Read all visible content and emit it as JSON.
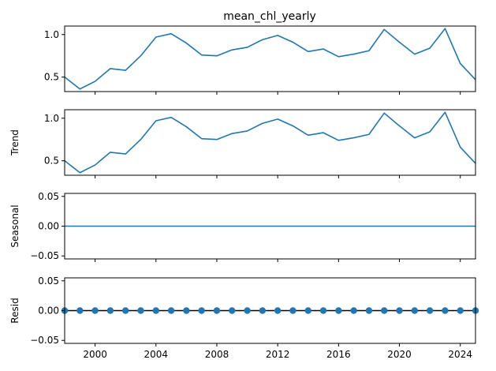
{
  "chart_data": {
    "type": "line",
    "title": "mean_chl_yearly",
    "x": [
      1998,
      1999,
      2000,
      2001,
      2002,
      2003,
      2004,
      2005,
      2006,
      2007,
      2008,
      2009,
      2010,
      2011,
      2012,
      2013,
      2014,
      2015,
      2016,
      2017,
      2018,
      2019,
      2020,
      2021,
      2022,
      2023,
      2024,
      2025
    ],
    "xlim": [
      1998,
      2025
    ],
    "xticks": [
      2000,
      2004,
      2008,
      2012,
      2016,
      2020,
      2024
    ],
    "xtick_labels": [
      "2000",
      "2004",
      "2008",
      "2012",
      "2016",
      "2020",
      "2024"
    ],
    "color": "#1f77b4",
    "residual_line_color": "#000000",
    "panels": [
      {
        "name": "observed",
        "ylabel": "",
        "style": "line",
        "ylim": [
          0.33,
          1.1
        ],
        "yticks": [
          0.5,
          1.0
        ],
        "ytick_labels": [
          "0.5",
          "1.0"
        ],
        "values": [
          0.5,
          0.36,
          0.45,
          0.6,
          0.58,
          0.75,
          0.97,
          1.01,
          0.9,
          0.76,
          0.75,
          0.82,
          0.85,
          0.94,
          0.99,
          0.91,
          0.8,
          0.83,
          0.74,
          0.77,
          0.81,
          1.06,
          0.91,
          0.77,
          0.84,
          1.07,
          0.66,
          0.47
        ]
      },
      {
        "name": "trend",
        "ylabel": "Trend",
        "style": "line",
        "ylim": [
          0.33,
          1.1
        ],
        "yticks": [
          0.5,
          1.0
        ],
        "ytick_labels": [
          "0.5",
          "1.0"
        ],
        "values": [
          0.5,
          0.36,
          0.45,
          0.6,
          0.58,
          0.75,
          0.97,
          1.01,
          0.9,
          0.76,
          0.75,
          0.82,
          0.85,
          0.94,
          0.99,
          0.91,
          0.8,
          0.83,
          0.74,
          0.77,
          0.81,
          1.06,
          0.91,
          0.77,
          0.84,
          1.07,
          0.66,
          0.47
        ]
      },
      {
        "name": "seasonal",
        "ylabel": "Seasonal",
        "style": "line",
        "ylim": [
          -0.055,
          0.055
        ],
        "yticks": [
          -0.05,
          0.0,
          0.05
        ],
        "ytick_labels": [
          "−0.05",
          "0.00",
          "0.05"
        ],
        "values": [
          0,
          0,
          0,
          0,
          0,
          0,
          0,
          0,
          0,
          0,
          0,
          0,
          0,
          0,
          0,
          0,
          0,
          0,
          0,
          0,
          0,
          0,
          0,
          0,
          0,
          0,
          0,
          0
        ]
      },
      {
        "name": "resid",
        "ylabel": "Resid",
        "style": "scatter",
        "ylim": [
          -0.055,
          0.055
        ],
        "yticks": [
          -0.05,
          0.0,
          0.05
        ],
        "ytick_labels": [
          "−0.05",
          "0.00",
          "0.05"
        ],
        "values": [
          0,
          0,
          0,
          0,
          0,
          0,
          0,
          0,
          0,
          0,
          0,
          0,
          0,
          0,
          0,
          0,
          0,
          0,
          0,
          0,
          0,
          0,
          0,
          0,
          0,
          0,
          0,
          0
        ]
      }
    ]
  }
}
